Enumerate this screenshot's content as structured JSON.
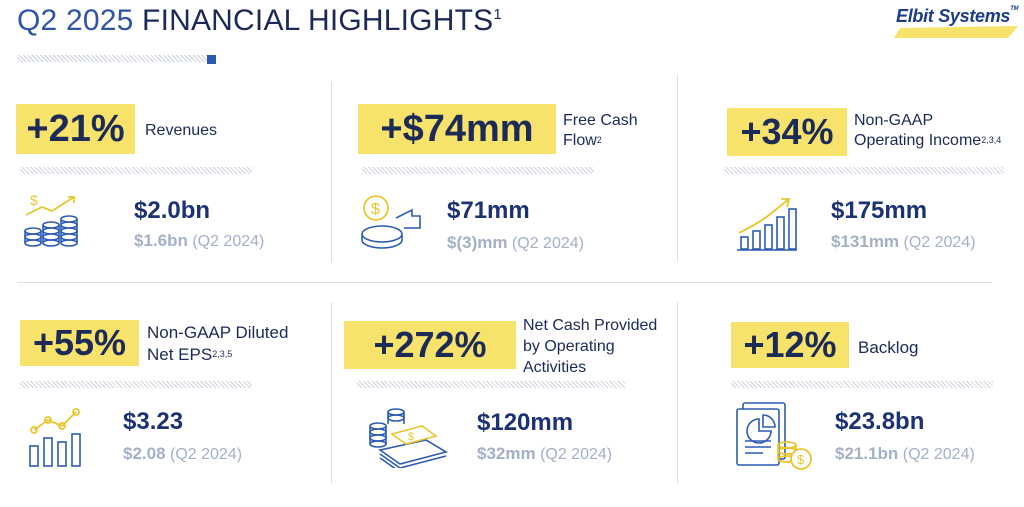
{
  "header": {
    "period": "Q2 2025",
    "title": "FINANCIAL HIGHLIGHTS",
    "footnote": "1",
    "logo": "Elbit Systems",
    "logo_tm": "TM"
  },
  "metrics": [
    {
      "change": "+21%",
      "label": "Revenues",
      "label_sup": "",
      "current": "$2.0bn",
      "prior_value": "$1.6bn",
      "prior_period": "(Q2 2024)",
      "icon": "revenue-coins-icon"
    },
    {
      "change": "+$74mm",
      "label_line1": "Free Cash",
      "label_line2": "Flow",
      "label_sup": "2",
      "current": "$71mm",
      "prior_value": "$(3)mm",
      "prior_period": "(Q2 2024)",
      "icon": "cash-flow-icon"
    },
    {
      "change": "+34%",
      "label_line1": "Non-GAAP",
      "label_line2": "Operating Income",
      "label_sup": "2,3,4",
      "current": "$175mm",
      "prior_value": "$131mm",
      "prior_period": "(Q2 2024)",
      "icon": "growth-bars-icon"
    },
    {
      "change": "+55%",
      "label_line1": "Non-GAAP Diluted",
      "label_line2": "Net EPS",
      "label_sup": "2,3,5",
      "current": "$3.23",
      "prior_value": "$2.08",
      "prior_period": "(Q2 2024)",
      "icon": "eps-chart-icon"
    },
    {
      "change": "+272%",
      "label_line1": "Net Cash Provided",
      "label_line2": "by Operating",
      "label_line3": "Activities",
      "current": "$120mm",
      "prior_value": "$32mm",
      "prior_period": "(Q2 2024)",
      "icon": "cash-stack-icon"
    },
    {
      "change": "+12%",
      "label": "Backlog",
      "current": "$23.8bn",
      "prior_value": "$21.1bn",
      "prior_period": "(Q2 2024)",
      "icon": "backlog-report-icon"
    }
  ],
  "colors": {
    "badge": "#f7e26b",
    "navy": "#1d3275",
    "accent_blue": "#2d5bb3",
    "prior_gray": "#a4b0c8"
  }
}
